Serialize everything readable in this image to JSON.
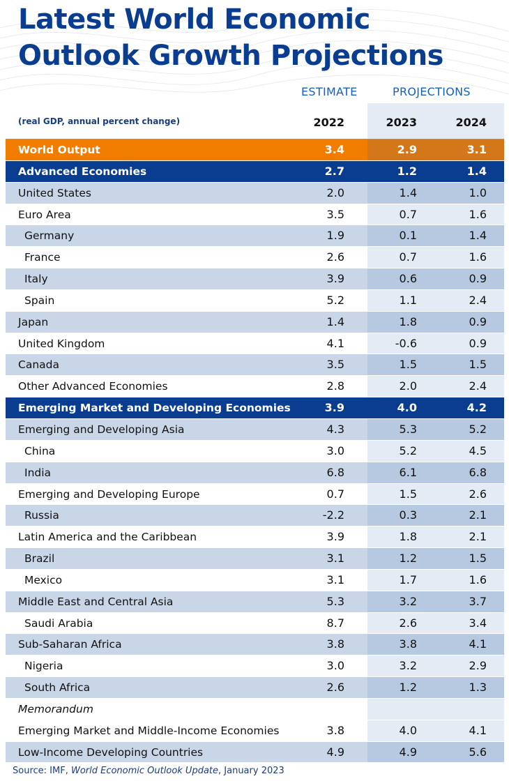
{
  "title_line1": "Latest World Economic",
  "title_line2": "Outlook Growth Projections",
  "header": {
    "estimate": "ESTIMATE",
    "projections": "PROJECTIONS",
    "subtitle": "(real GDP, annual percent change)",
    "years": [
      "2022",
      "2023",
      "2024"
    ]
  },
  "colors": {
    "title_blue": "#0a3d8f",
    "orange": "#f07d00",
    "light_band": "#c9d6e8",
    "proj_band": "#e4ebf4"
  },
  "chart_data": {
    "type": "table",
    "title": "Latest World Economic Outlook Growth Projections",
    "subtitle": "(real GDP, annual percent change)",
    "columns": [
      "2022",
      "2023",
      "2024"
    ],
    "column_groups": [
      {
        "name": "ESTIMATE",
        "columns": [
          "2022"
        ]
      },
      {
        "name": "PROJECTIONS",
        "columns": [
          "2023",
          "2024"
        ]
      }
    ],
    "rows": [
      {
        "label": "World Output",
        "values": [
          "3.4",
          "2.9",
          "3.1"
        ],
        "style": "orange",
        "level": 0
      },
      {
        "label": "Advanced Economies",
        "values": [
          "2.7",
          "1.2",
          "1.4"
        ],
        "style": "blue",
        "level": 0
      },
      {
        "label": "United States",
        "values": [
          "2.0",
          "1.4",
          "1.0"
        ],
        "style": "light",
        "level": 1
      },
      {
        "label": "Euro Area",
        "values": [
          "3.5",
          "0.7",
          "1.6"
        ],
        "style": "white",
        "level": 1
      },
      {
        "label": "Germany",
        "values": [
          "1.9",
          "0.1",
          "1.4"
        ],
        "style": "light",
        "level": 2
      },
      {
        "label": "France",
        "values": [
          "2.6",
          "0.7",
          "1.6"
        ],
        "style": "white",
        "level": 2
      },
      {
        "label": "Italy",
        "values": [
          "3.9",
          "0.6",
          "0.9"
        ],
        "style": "light",
        "level": 2
      },
      {
        "label": "Spain",
        "values": [
          "5.2",
          "1.1",
          "2.4"
        ],
        "style": "white",
        "level": 2
      },
      {
        "label": "Japan",
        "values": [
          "1.4",
          "1.8",
          "0.9"
        ],
        "style": "light",
        "level": 1
      },
      {
        "label": "United Kingdom",
        "values": [
          "4.1",
          "-0.6",
          "0.9"
        ],
        "style": "white",
        "level": 1
      },
      {
        "label": "Canada",
        "values": [
          "3.5",
          "1.5",
          "1.5"
        ],
        "style": "light",
        "level": 1
      },
      {
        "label": "Other Advanced Economies",
        "values": [
          "2.8",
          "2.0",
          "2.4"
        ],
        "style": "white",
        "level": 1
      },
      {
        "label": "Emerging Market and Developing Economies",
        "values": [
          "3.9",
          "4.0",
          "4.2"
        ],
        "style": "blue",
        "level": 0
      },
      {
        "label": "Emerging and Developing Asia",
        "values": [
          "4.3",
          "5.3",
          "5.2"
        ],
        "style": "light",
        "level": 1
      },
      {
        "label": "China",
        "values": [
          "3.0",
          "5.2",
          "4.5"
        ],
        "style": "white",
        "level": 2
      },
      {
        "label": "India",
        "values": [
          "6.8",
          "6.1",
          "6.8"
        ],
        "style": "light",
        "level": 2
      },
      {
        "label": "Emerging and Developing Europe",
        "values": [
          "0.7",
          "1.5",
          "2.6"
        ],
        "style": "white",
        "level": 1
      },
      {
        "label": "Russia",
        "values": [
          "-2.2",
          "0.3",
          "2.1"
        ],
        "style": "light",
        "level": 2
      },
      {
        "label": "Latin America and the Caribbean",
        "values": [
          "3.9",
          "1.8",
          "2.1"
        ],
        "style": "white",
        "level": 1
      },
      {
        "label": "Brazil",
        "values": [
          "3.1",
          "1.2",
          "1.5"
        ],
        "style": "light",
        "level": 2
      },
      {
        "label": "Mexico",
        "values": [
          "3.1",
          "1.7",
          "1.6"
        ],
        "style": "white",
        "level": 2
      },
      {
        "label": "Middle East and Central Asia",
        "values": [
          "5.3",
          "3.2",
          "3.7"
        ],
        "style": "light",
        "level": 1
      },
      {
        "label": "Saudi Arabia",
        "values": [
          "8.7",
          "2.6",
          "3.4"
        ],
        "style": "white",
        "level": 2
      },
      {
        "label": "Sub-Saharan Africa",
        "values": [
          "3.8",
          "3.8",
          "4.1"
        ],
        "style": "light",
        "level": 1
      },
      {
        "label": "Nigeria",
        "values": [
          "3.0",
          "3.2",
          "2.9"
        ],
        "style": "white",
        "level": 2
      },
      {
        "label": "South Africa",
        "values": [
          "2.6",
          "1.2",
          "1.3"
        ],
        "style": "light",
        "level": 2
      },
      {
        "label": "Memorandum",
        "values": [
          "",
          "",
          ""
        ],
        "style": "white",
        "level": 1,
        "italic": true
      },
      {
        "label": "Emerging Market and Middle-Income Economies",
        "values": [
          "3.8",
          "4.0",
          "4.1"
        ],
        "style": "white",
        "level": 1
      },
      {
        "label": "Low-Income Developing Countries",
        "values": [
          "4.9",
          "4.9",
          "5.6"
        ],
        "style": "light",
        "level": 1
      }
    ]
  },
  "source": {
    "prefix": "Source: IMF, ",
    "publication": "World Economic Outlook Update",
    "suffix": ", January 2023"
  }
}
